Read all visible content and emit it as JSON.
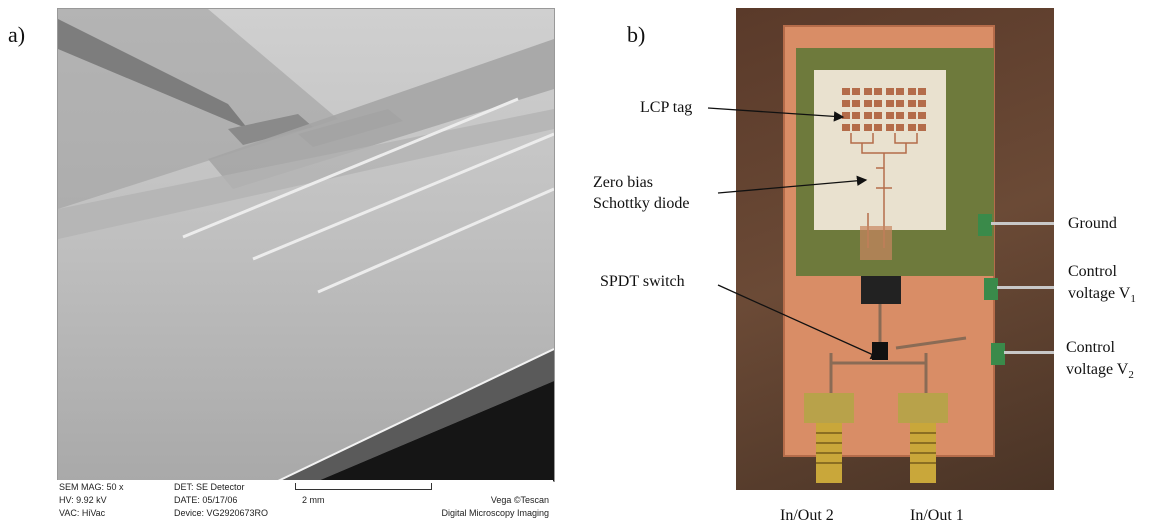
{
  "panel_a": {
    "label": "a)",
    "info": {
      "sem_mag": "SEM MAG: 50 x",
      "hv": "HV:  9.92 kV",
      "vac": "VAC: HiVac",
      "det": "DET: SE Detector",
      "date": "DATE: 05/17/06",
      "device": "Device: VG2920673RO",
      "scale": "2 mm",
      "brand": "Vega ©Tescan",
      "brand_sub": "Digital Microscopy Imaging"
    }
  },
  "panel_b": {
    "label": "b)",
    "callouts": {
      "lcp_tag": "LCP tag",
      "diode_line1": "Zero bias",
      "diode_line2": "Schottky diode",
      "spdt": "SPDT switch",
      "ground": "Ground",
      "cv1_line1": "Control",
      "cv1_line2": "voltage V",
      "cv1_sub": "1",
      "cv2_line1": "Control",
      "cv2_line2": "voltage V",
      "cv2_sub": "2",
      "inout2": "In/Out 2",
      "inout1": "In/Out 1"
    }
  }
}
